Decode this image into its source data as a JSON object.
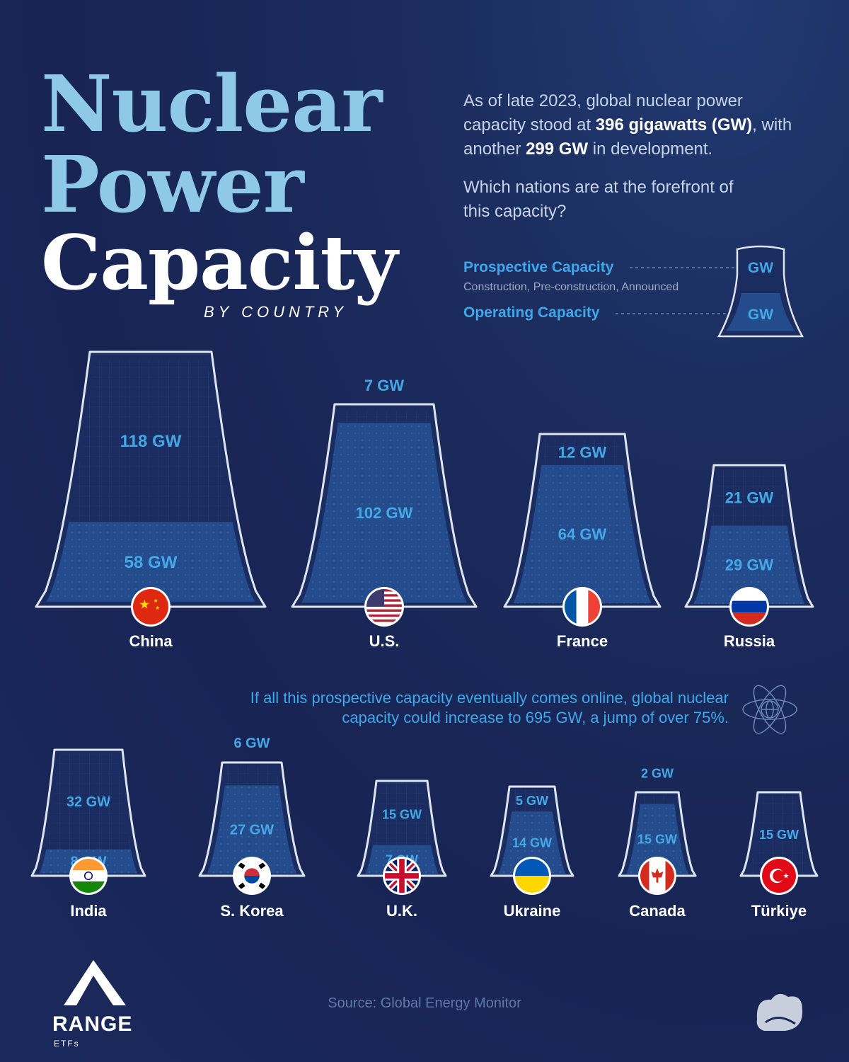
{
  "title": {
    "line1": "Nuclear",
    "line2": "Power",
    "line3": "Capacity",
    "subtitle": "BY COUNTRY"
  },
  "intro": {
    "p1_a": "As of late 2023, global nuclear power capacity stood at ",
    "p1_b": "396 gigawatts (GW)",
    "p1_c": ", with another ",
    "p1_d": "299 GW",
    "p1_e": " in development.",
    "p2": "Which nations are at the forefront of this capacity?"
  },
  "legend": {
    "prospective_label": "Prospective Capacity",
    "prospective_sub": "Construction, Pre-construction, Announced",
    "operating_label": "Operating Capacity",
    "unit_top": "GW",
    "unit_bottom": "GW"
  },
  "note": "If all this prospective capacity eventually comes online, global nuclear capacity could increase to 695 GW, a jump of over 75%.",
  "source": "Source: Global Energy Monitor",
  "brand": {
    "name": "RANGE",
    "sub": "ETFs"
  },
  "chart_data": {
    "type": "bar",
    "unit": "GW",
    "categories": [
      "China",
      "U.S.",
      "France",
      "Russia",
      "India",
      "S. Korea",
      "U.K.",
      "Ukraine",
      "Canada",
      "Türkiye"
    ],
    "series": [
      {
        "name": "Operating Capacity",
        "values": [
          58,
          102,
          64,
          29,
          8,
          27,
          7,
          14,
          15,
          0
        ]
      },
      {
        "name": "Prospective Capacity",
        "values": [
          118,
          7,
          12,
          21,
          32,
          6,
          15,
          5,
          2,
          15
        ]
      }
    ],
    "labels": {
      "operating": [
        "58 GW",
        "102 GW",
        "64 GW",
        "29 GW",
        "8 GW",
        "27 GW",
        "7 GW",
        "14 GW",
        "15 GW",
        ""
      ],
      "prospective": [
        "118 GW",
        "7 GW",
        "12 GW",
        "21 GW",
        "32 GW",
        "6 GW",
        "15 GW",
        "5 GW",
        "2 GW",
        "15 GW"
      ]
    },
    "colors": {
      "tower_outline": "#dfe5ef",
      "operating_fill": "#244c8c",
      "prospective_fill": "#1a2c60",
      "label": "#45a8e6"
    }
  }
}
